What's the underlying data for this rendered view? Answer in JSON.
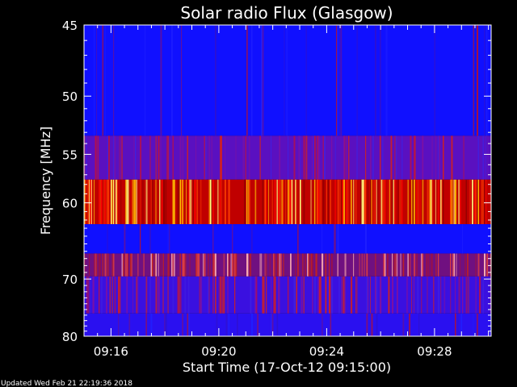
{
  "chart_data": {
    "type": "heatmap",
    "title": "Solar radio Flux (Glasgow)",
    "xlabel": "Start Time (17-Oct-12 09:15:00)",
    "ylabel": "Frequency [MHz]",
    "x_ticks": [
      "09:16",
      "09:20",
      "09:24",
      "09:28"
    ],
    "x_tick_minutes": [
      1,
      5,
      9,
      13
    ],
    "x_range_minutes": [
      0,
      15.1
    ],
    "y_ticks": [
      45,
      50,
      55,
      60,
      70,
      80
    ],
    "y_range_mhz": [
      45,
      80
    ],
    "y_scale": "reciprocal",
    "colormap": [
      "#0000ff",
      "#7a0a50",
      "#d40000",
      "#ffa000",
      "#ffff60"
    ],
    "frequency_bands": [
      {
        "from": 45,
        "to": 53.3,
        "level": "low",
        "base": "#1010ff"
      },
      {
        "from": 53.3,
        "to": 57.5,
        "level": "medium-low",
        "base": "#5a10c0"
      },
      {
        "from": 57.5,
        "to": 62.5,
        "level": "high",
        "base": "#c00000"
      },
      {
        "from": 62.5,
        "to": 66.3,
        "level": "low",
        "base": "#1010ff"
      },
      {
        "from": 66.3,
        "to": 69.6,
        "level": "medium",
        "base": "#701080"
      },
      {
        "from": 69.6,
        "to": 75.7,
        "level": "medium-low",
        "base": "#3a10e0"
      },
      {
        "from": 75.7,
        "to": 80,
        "level": "low",
        "base": "#2a10f0"
      }
    ]
  },
  "footer": {
    "updated": "Updated Wed Feb 21 22:19:36 2018"
  }
}
